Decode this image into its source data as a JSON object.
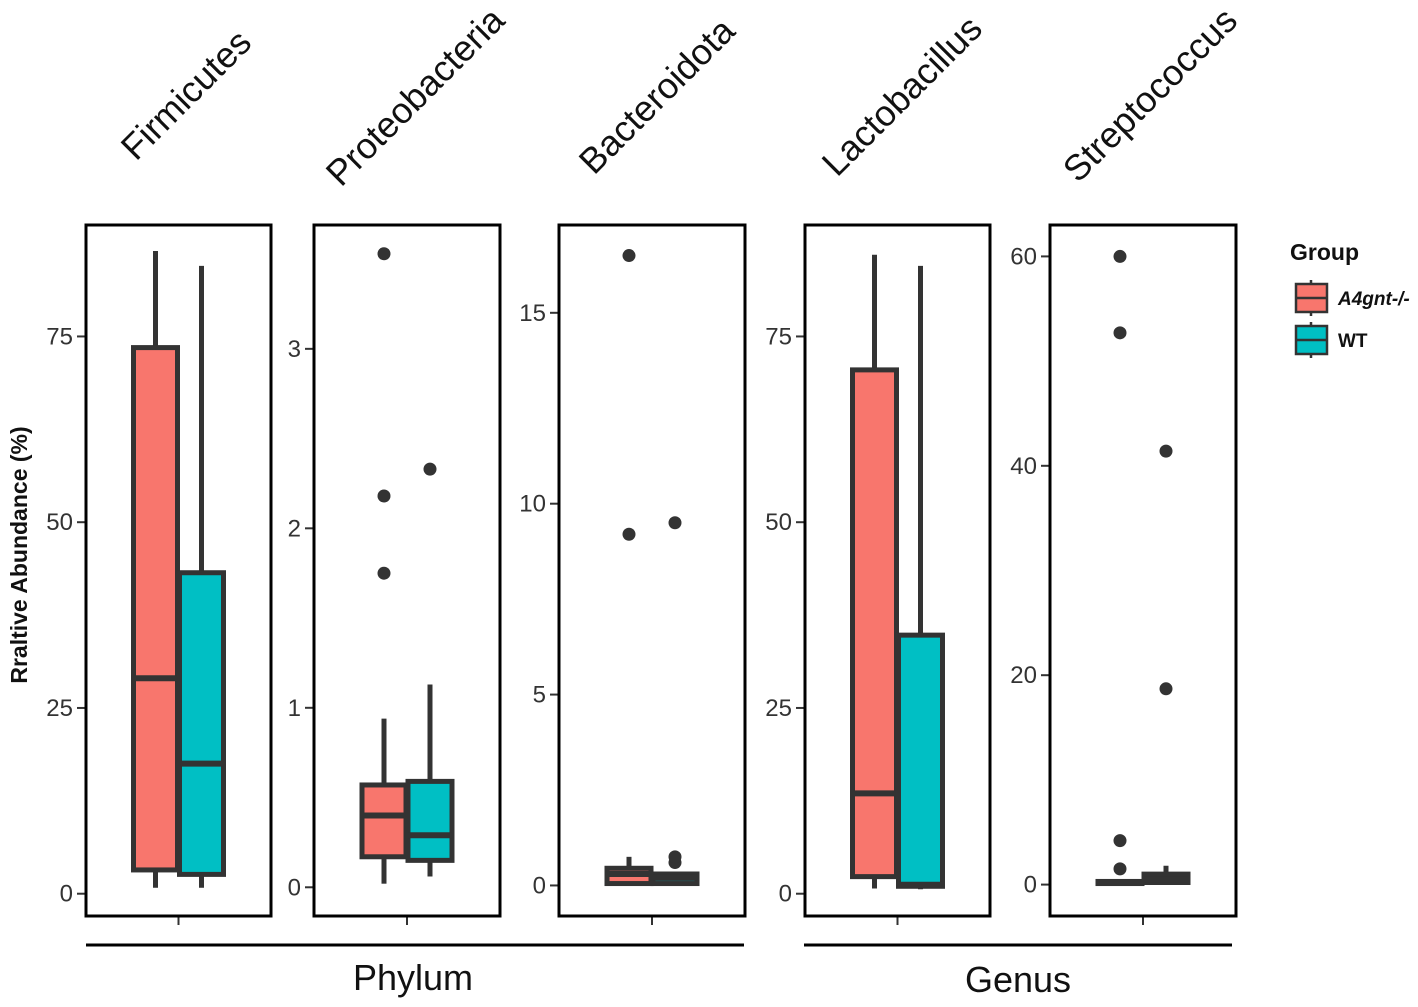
{
  "chart_data": {
    "type": "boxplot",
    "ylabel": "Rraltive Abundance (%)",
    "groups": [
      {
        "label": "Phylum",
        "panels": [
          "Firmicutes",
          "Proteobacteria",
          "Bacteroidota"
        ]
      },
      {
        "label": "Genus",
        "panels": [
          "Lactobacillus",
          "Streptococcus"
        ]
      }
    ],
    "legend": {
      "title": "Group",
      "entries": [
        {
          "name": "A4gnt-/-",
          "color": "#F8766D"
        },
        {
          "name": "WT",
          "color": "#00BFC4"
        }
      ]
    },
    "panels": [
      {
        "name": "Firmicutes",
        "ylim": [
          -3,
          90
        ],
        "yticks": [
          0,
          25,
          50,
          75
        ],
        "series": [
          {
            "group": "A4gnt-/-",
            "whisker_low": 0.8,
            "q1": 3.2,
            "median": 29,
            "q3": 73.5,
            "whisker_high": 86.5,
            "outliers": []
          },
          {
            "group": "WT",
            "whisker_low": 0.8,
            "q1": 2.6,
            "median": 17.5,
            "q3": 43.2,
            "whisker_high": 84.5,
            "outliers": []
          }
        ]
      },
      {
        "name": "Proteobacteria",
        "ylim": [
          -0.16,
          3.69
        ],
        "yticks": [
          0,
          1,
          2,
          3
        ],
        "series": [
          {
            "group": "A4gnt-/-",
            "whisker_low": 0.02,
            "q1": 0.17,
            "median": 0.4,
            "q3": 0.57,
            "whisker_high": 0.94,
            "outliers": [
              3.53,
              2.18,
              1.75
            ]
          },
          {
            "group": "WT",
            "whisker_low": 0.06,
            "q1": 0.15,
            "median": 0.29,
            "q3": 0.59,
            "whisker_high": 1.13,
            "outliers": [
              2.33
            ]
          }
        ]
      },
      {
        "name": "Bacteroidota",
        "ylim": [
          -0.8,
          17.3
        ],
        "yticks": [
          0,
          5,
          10,
          15
        ],
        "series": [
          {
            "group": "A4gnt-/-",
            "whisker_low": 0.0,
            "q1": 0.05,
            "median": 0.3,
            "q3": 0.45,
            "whisker_high": 0.75,
            "outliers": [
              16.5,
              9.2
            ]
          },
          {
            "group": "WT",
            "whisker_low": 0.0,
            "q1": 0.05,
            "median": 0.2,
            "q3": 0.3,
            "whisker_high": 0.35,
            "outliers": [
              9.5,
              0.6,
              0.75
            ]
          }
        ]
      },
      {
        "name": "Lactobacillus",
        "ylim": [
          -3,
          90
        ],
        "yticks": [
          0,
          25,
          50,
          75
        ],
        "series": [
          {
            "group": "A4gnt-/-",
            "whisker_low": 0.7,
            "q1": 2.3,
            "median": 13.5,
            "q3": 70.5,
            "whisker_high": 86,
            "outliers": []
          },
          {
            "group": "WT",
            "whisker_low": 0.6,
            "q1": 1.0,
            "median": 1.2,
            "q3": 34.8,
            "whisker_high": 84.5,
            "outliers": []
          }
        ]
      },
      {
        "name": "Streptococcus",
        "ylim": [
          -3,
          63
        ],
        "yticks": [
          0,
          20,
          40,
          60
        ],
        "series": [
          {
            "group": "A4gnt-/-",
            "whisker_low": 0.0,
            "q1": 0.1,
            "median": 0.2,
            "q3": 0.3,
            "whisker_high": 0.4,
            "outliers": [
              60,
              52.7,
              4.2,
              1.5
            ]
          },
          {
            "group": "WT",
            "whisker_low": 0.0,
            "q1": 0.2,
            "median": 0.5,
            "q3": 1.0,
            "whisker_high": 1.8,
            "outliers": [
              41.4,
              18.7
            ]
          }
        ]
      }
    ]
  }
}
